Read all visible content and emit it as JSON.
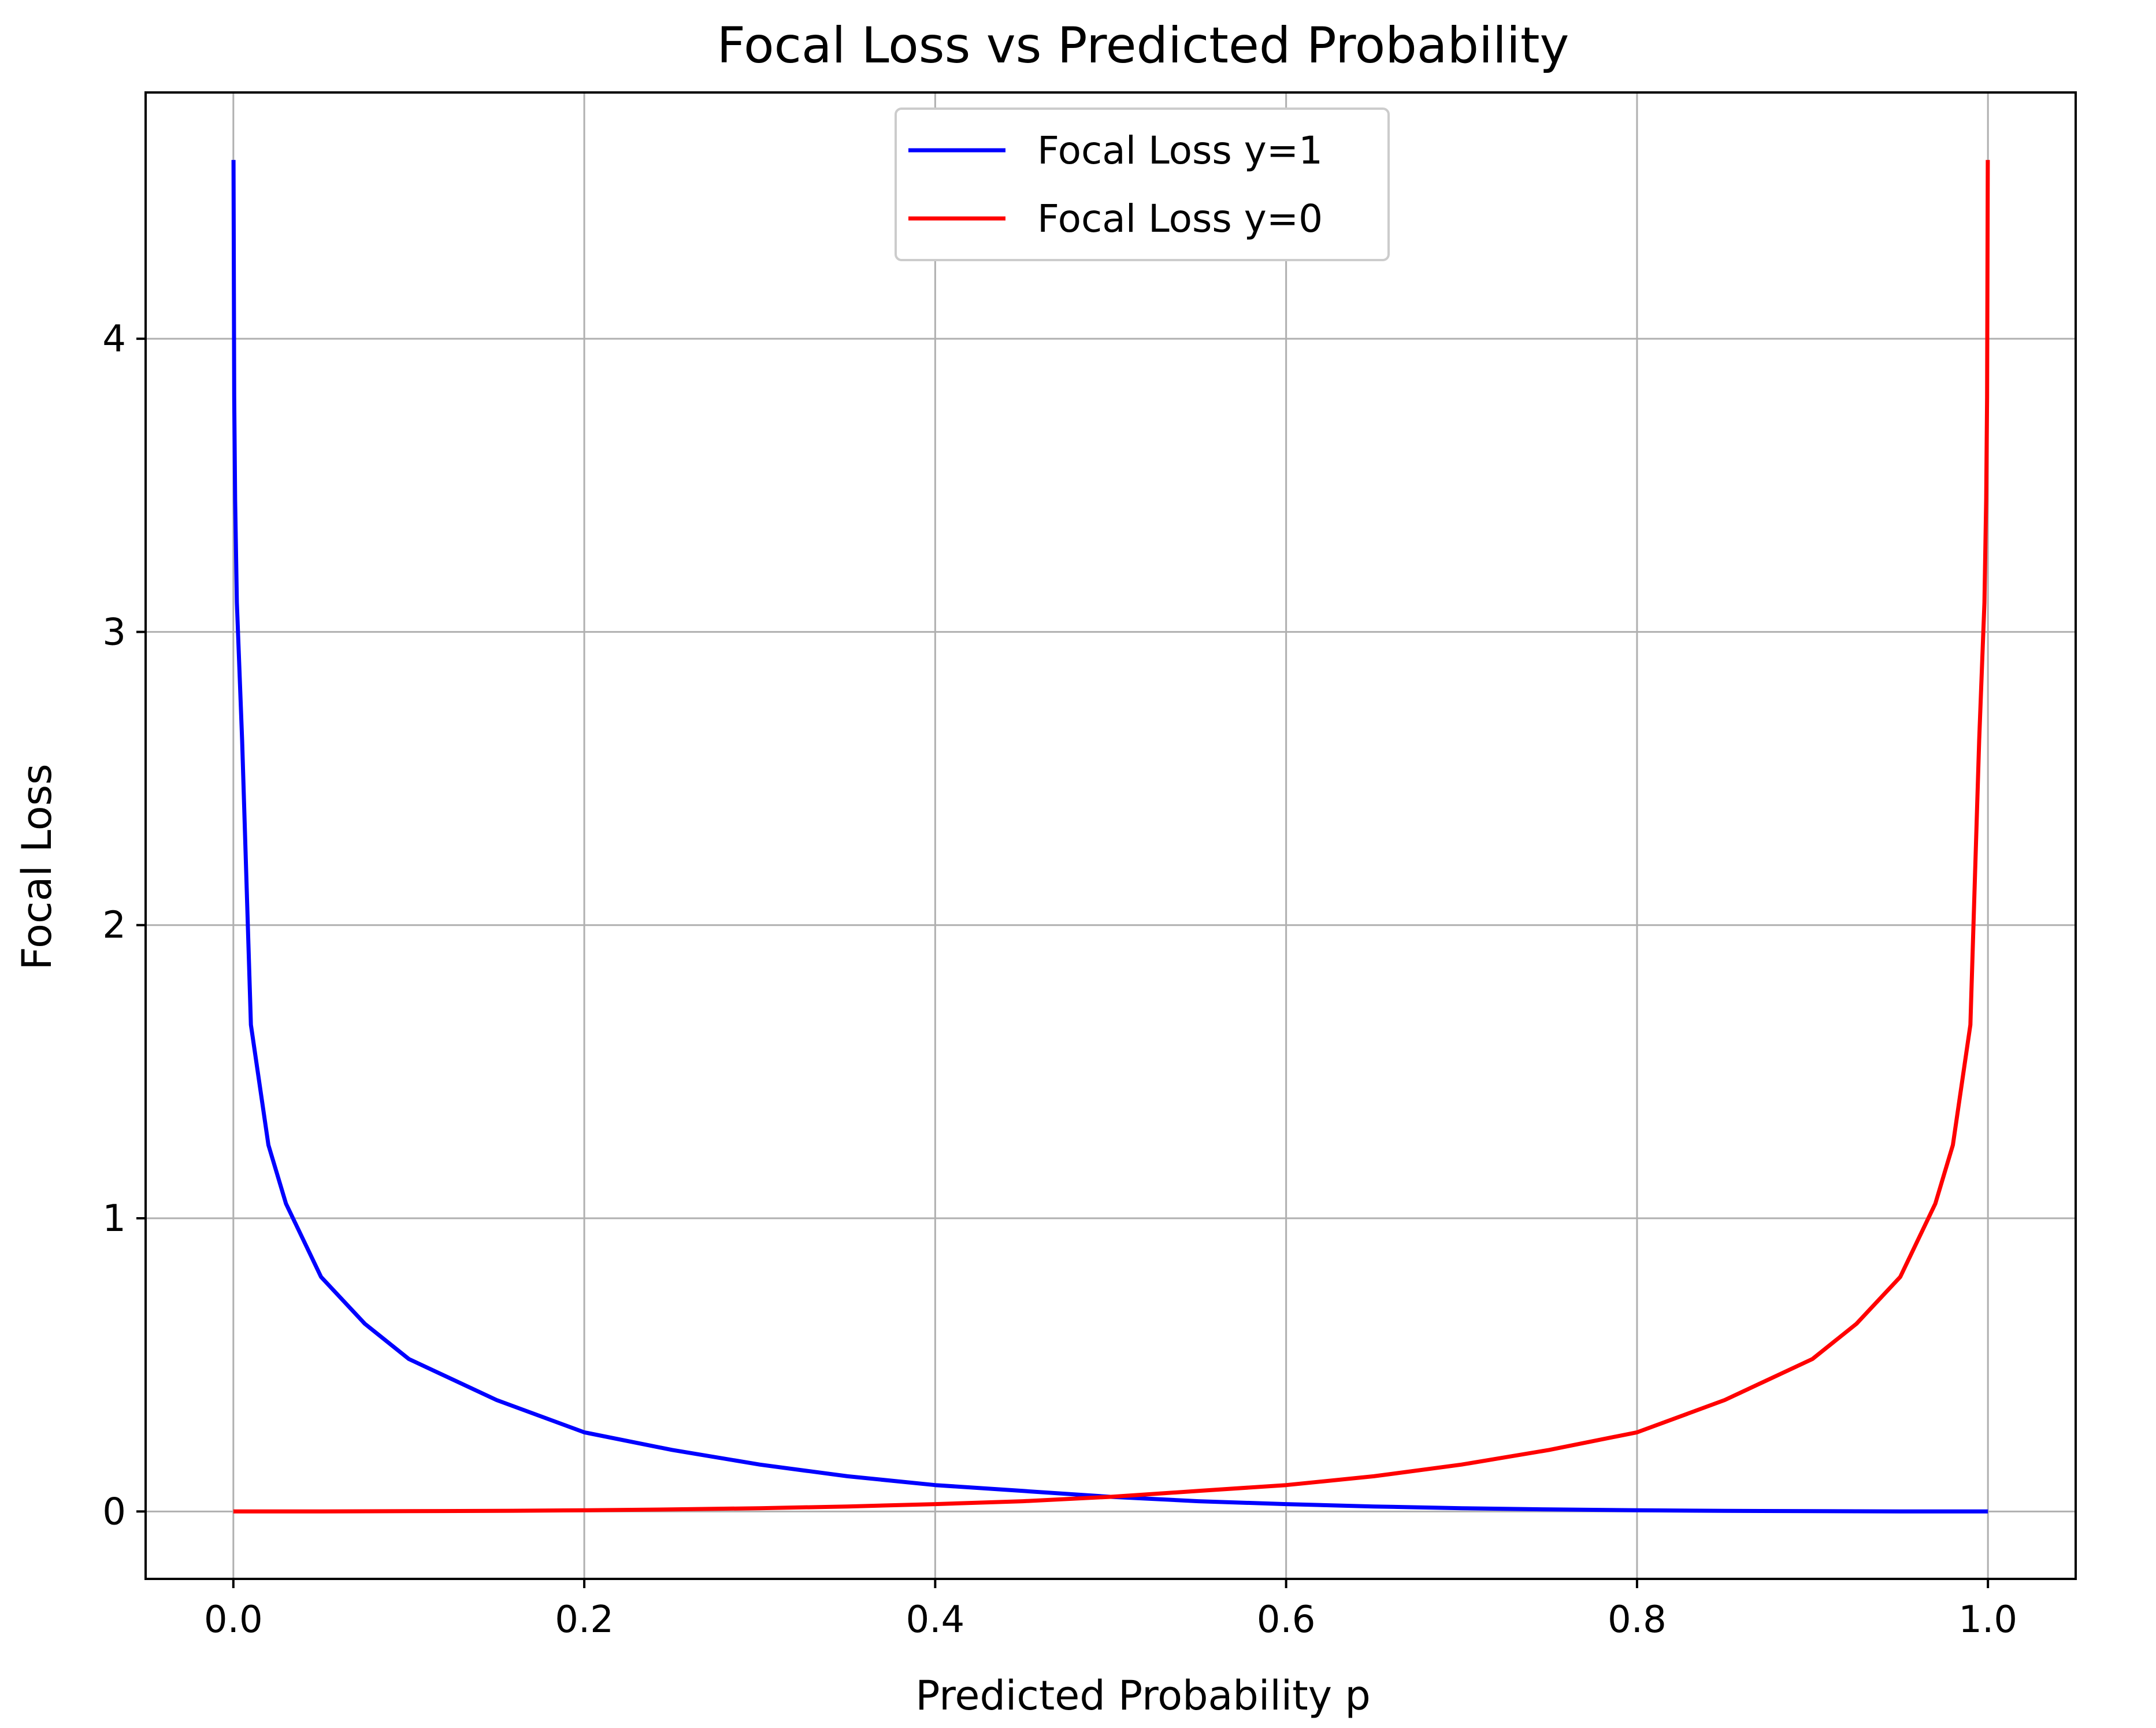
{
  "chart_data": {
    "type": "line",
    "title": "Focal Loss vs Predicted Probability",
    "xlabel": "Predicted Probability p",
    "ylabel": "Focal Loss",
    "xlim": [
      -0.05,
      1.05
    ],
    "ylim": [
      -0.23,
      4.84
    ],
    "xticks": [
      "0.0",
      "0.2",
      "0.4",
      "0.6",
      "0.8",
      "1.0"
    ],
    "yticks": [
      "0",
      "1",
      "2",
      "3",
      "4"
    ],
    "grid": true,
    "legend_position": "top-center",
    "series": [
      {
        "name": "Focal Loss y=1",
        "color": "#0000ff",
        "x": [
          0.0001,
          0.0005,
          0.001,
          0.002,
          0.005,
          0.01,
          0.02,
          0.03,
          0.05,
          0.075,
          0.1,
          0.15,
          0.2,
          0.25,
          0.3,
          0.35,
          0.4,
          0.45,
          0.5,
          0.55,
          0.6,
          0.65,
          0.7,
          0.75,
          0.8,
          0.85,
          0.9,
          0.95,
          1.0
        ],
        "values": [
          4.61,
          3.8,
          3.45,
          3.1,
          2.63,
          1.66,
          1.25,
          1.05,
          0.8,
          0.64,
          0.52,
          0.38,
          0.27,
          0.21,
          0.16,
          0.12,
          0.09,
          0.07,
          0.05,
          0.035,
          0.025,
          0.017,
          0.011,
          0.007,
          0.004,
          0.002,
          0.001,
          0.0003,
          0.0
        ]
      },
      {
        "name": "Focal Loss y=0",
        "color": "#ff0000",
        "x": [
          0.0,
          0.05,
          0.1,
          0.15,
          0.2,
          0.25,
          0.3,
          0.35,
          0.4,
          0.45,
          0.5,
          0.55,
          0.6,
          0.65,
          0.7,
          0.75,
          0.8,
          0.85,
          0.9,
          0.925,
          0.95,
          0.97,
          0.98,
          0.99,
          0.995,
          0.998,
          0.999,
          0.9995,
          0.9999
        ],
        "values": [
          0.0,
          0.0003,
          0.001,
          0.002,
          0.004,
          0.007,
          0.011,
          0.017,
          0.025,
          0.035,
          0.05,
          0.07,
          0.09,
          0.12,
          0.16,
          0.21,
          0.27,
          0.38,
          0.52,
          0.64,
          0.8,
          1.05,
          1.25,
          1.66,
          2.63,
          3.1,
          3.45,
          3.8,
          4.61
        ]
      }
    ]
  }
}
